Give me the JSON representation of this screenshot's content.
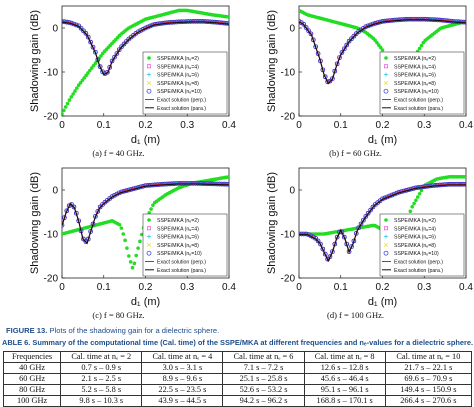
{
  "caption13": {
    "label": "FIGURE 13.",
    "text": "Plots of the shadowing gain for a dielectric sphere."
  },
  "caption6": "ABLE 6.  Summary of the computational time (Cal. time) of the SSPE/MKA at different frequencies and nₑ-values for a dielectric sphere.",
  "table": {
    "headers": [
      "Frequencies",
      "Cal. time at nₑ = 2",
      "Cal. time at nₑ = 4",
      "Cal. time at nₑ = 6",
      "Cal. time at nₑ = 8",
      "Cal. time at nₑ = 10"
    ],
    "rows": [
      [
        "40 GHz",
        "0.7 s – 0.9 s",
        "3.0 s – 3.1 s",
        "7.1 s – 7.2 s",
        "12.6 s – 12.8 s",
        "21.7 s – 22.1 s"
      ],
      [
        "60 GHz",
        "2.1 s – 2.5 s",
        "8.9 s – 9.6 s",
        "25.1 s – 25.8 s",
        "45.6 s – 46.4 s",
        "69.6 s – 70.9 s"
      ],
      [
        "80 GHz",
        "5.2 s – 5.8 s",
        "22.5 s – 23.5 s",
        "52.6 s – 53.2 s",
        "95.1 s – 96.1 s",
        "149.4 s – 150.9 s"
      ],
      [
        "100 GHz",
        "9.8 s – 10.3 s",
        "43.9 s – 44.5 s",
        "94.2 s – 96.2 s",
        "168.8 s – 170.1 s",
        "266.4 s – 270.6 s"
      ]
    ]
  },
  "legend_entries": [
    "SSPE/MKA (nₑ=2)",
    "SSPE/MKA (nₑ=4)",
    "SSPE/MKA (nₑ=6)",
    "SSPE/MKA (nₑ=8)",
    "SSPE/MKA (nₑ=10)",
    "Exact solution (perp.)",
    "Exact solution (para.)"
  ],
  "colors": {
    "ne2": "#22dd22",
    "ne4": "#e030e0",
    "ne6": "#20c8e8",
    "ne8": "#e8e020",
    "ne10": "#2233cc",
    "perp": "#e02020",
    "para": "#111111",
    "caption": "#1e4d8c"
  },
  "chart_data": [
    {
      "type": "scatter",
      "caption": "(a)  f = 40 GHz.",
      "xlabel": "d₁ (m)",
      "ylabel": "Shadowing gain (dB)",
      "xlim": [
        0,
        0.4
      ],
      "ylim": [
        -20,
        5
      ],
      "xticks": [
        "0",
        "0.1",
        "0.2",
        "0.3",
        "0.4"
      ],
      "yticks": [
        "0",
        "-10",
        "-20"
      ],
      "legend": "right",
      "exact": {
        "x": [
          0,
          0.02,
          0.04,
          0.06,
          0.08,
          0.09,
          0.1,
          0.11,
          0.12,
          0.14,
          0.16,
          0.18,
          0.2,
          0.22,
          0.25,
          0.28,
          0.31,
          0.34,
          0.37,
          0.4
        ],
        "y": [
          1.5,
          1.2,
          0.5,
          -1.5,
          -5.5,
          -8.5,
          -10.5,
          -10.0,
          -7.5,
          -4.5,
          -2.5,
          -1.0,
          0.0,
          0.8,
          1.2,
          1.4,
          1.5,
          1.5,
          1.3,
          1.0
        ]
      },
      "ne2": {
        "x": [
          0,
          0.02,
          0.04,
          0.06,
          0.08,
          0.1,
          0.12,
          0.14,
          0.16,
          0.18,
          0.2,
          0.22,
          0.24,
          0.26,
          0.28,
          0.3,
          0.33,
          0.36,
          0.4
        ],
        "y": [
          -19.5,
          -16,
          -13,
          -10.5,
          -8,
          -5.5,
          -3.5,
          -1.5,
          0,
          1,
          2,
          2.5,
          3,
          3.5,
          4,
          4,
          3.5,
          3,
          2.5
        ]
      }
    },
    {
      "type": "scatter",
      "caption": "(b)  f = 60 GHz.",
      "xlabel": "d₁ (m)",
      "ylabel": "Shadowing gain (dB)",
      "xlim": [
        0,
        0.4
      ],
      "ylim": [
        -20,
        5
      ],
      "xticks": [
        "0",
        "0.1",
        "0.2",
        "0.3",
        "0.4"
      ],
      "yticks": [
        "0",
        "-10",
        "-20"
      ],
      "legend": "right",
      "exact": {
        "x": [
          0,
          0.01,
          0.03,
          0.05,
          0.06,
          0.07,
          0.08,
          0.09,
          0.1,
          0.12,
          0.14,
          0.16,
          0.18,
          0.2,
          0.23,
          0.26,
          0.3,
          0.34,
          0.37,
          0.4
        ],
        "y": [
          1.5,
          1.0,
          -1.5,
          -7,
          -10.5,
          -12.5,
          -11.5,
          -8.5,
          -6,
          -3,
          -1,
          0.3,
          1,
          1.5,
          1.8,
          2,
          2,
          1.8,
          1.5,
          1.3
        ]
      },
      "ne2": {
        "x": [
          0,
          0.02,
          0.04,
          0.06,
          0.08,
          0.1,
          0.12,
          0.14,
          0.16,
          0.18,
          0.2,
          0.22,
          0.23,
          0.24,
          0.26,
          0.28,
          0.3,
          0.32,
          0.34,
          0.36,
          0.38,
          0.4
        ],
        "y": [
          4,
          3,
          2.5,
          2,
          1.5,
          1,
          0.5,
          0,
          -1,
          -2.5,
          -5,
          -11,
          -15,
          -14,
          -10,
          -6,
          -3,
          -1.5,
          0,
          0.5,
          1,
          1.5
        ]
      }
    },
    {
      "type": "scatter",
      "caption": "(c)  f = 80 GHz.",
      "xlabel": "d₁ (m)",
      "ylabel": "Shadowing gain (dB)",
      "xlim": [
        0,
        0.4
      ],
      "ylim": [
        -20,
        5
      ],
      "xticks": [
        "0",
        "0.1",
        "0.2",
        "0.3",
        "0.4"
      ],
      "yticks": [
        "0",
        "-10",
        "-20"
      ],
      "legend": "right",
      "exact": {
        "x": [
          0,
          0.01,
          0.02,
          0.03,
          0.04,
          0.05,
          0.06,
          0.07,
          0.08,
          0.09,
          0.1,
          0.12,
          0.14,
          0.16,
          0.18,
          0.2,
          0.24,
          0.28,
          0.32,
          0.36,
          0.4
        ],
        "y": [
          -8,
          -5,
          -3,
          -4,
          -7,
          -11,
          -12,
          -9,
          -6,
          -4,
          -3,
          -1.5,
          -0.5,
          0,
          0.5,
          1,
          1.3,
          1.5,
          1.5,
          1.4,
          1.3
        ]
      },
      "ne2": {
        "x": [
          0,
          0.02,
          0.04,
          0.06,
          0.08,
          0.1,
          0.12,
          0.14,
          0.15,
          0.16,
          0.17,
          0.18,
          0.2,
          0.22,
          0.25,
          0.28,
          0.31,
          0.34,
          0.37,
          0.4
        ],
        "y": [
          -10,
          -9.5,
          -9,
          -8.5,
          -8,
          -7.5,
          -7,
          -8,
          -11,
          -15,
          -18,
          -14,
          -7,
          -3,
          -1,
          0.5,
          1.5,
          2,
          2.5,
          3
        ]
      }
    },
    {
      "type": "scatter",
      "caption": "(d)  f = 100 GHz.",
      "xlabel": "d₁ (m)",
      "ylabel": "Shadowing gain (dB)",
      "xlim": [
        0,
        0.4
      ],
      "ylim": [
        -20,
        5
      ],
      "xticks": [
        "0",
        "0.1",
        "0.2",
        "0.3",
        "0.4"
      ],
      "yticks": [
        "0",
        "-10",
        "-20"
      ],
      "legend": "right",
      "exact": {
        "x": [
          0,
          0.02,
          0.04,
          0.05,
          0.06,
          0.07,
          0.08,
          0.09,
          0.1,
          0.11,
          0.12,
          0.13,
          0.14,
          0.16,
          0.18,
          0.2,
          0.24,
          0.28,
          0.32,
          0.36,
          0.4
        ],
        "y": [
          -10,
          -10,
          -11,
          -12,
          -14,
          -16,
          -14,
          -11,
          -9,
          -11,
          -14,
          -12,
          -9,
          -6,
          -3.5,
          -2,
          -0.5,
          0.5,
          1,
          1.3,
          1.3
        ]
      },
      "ne2": {
        "x": [
          0,
          0.03,
          0.06,
          0.09,
          0.12,
          0.15,
          0.18,
          0.2,
          0.22,
          0.23,
          0.24,
          0.25,
          0.27,
          0.3,
          0.33,
          0.36,
          0.4
        ],
        "y": [
          -10,
          -10,
          -10,
          -9.5,
          -9,
          -8.5,
          -8,
          -9,
          -13,
          -17,
          -13,
          -9,
          -4,
          1,
          2.5,
          3,
          3
        ]
      }
    }
  ]
}
